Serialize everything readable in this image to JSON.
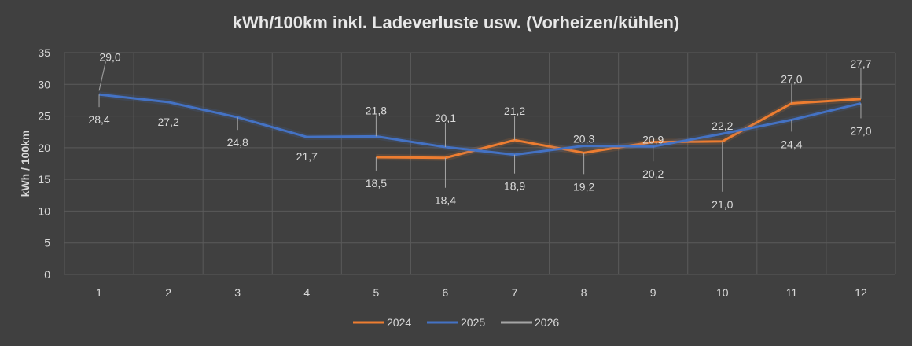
{
  "chart_data": {
    "type": "line",
    "title": "kWh/100km inkl. Ladeverluste usw. (Vorheizen/kühlen)",
    "xlabel": "",
    "ylabel": "kWh / 100km",
    "ylim": [
      0,
      35
    ],
    "yticks": [
      "0",
      "5",
      "10",
      "15",
      "20",
      "25",
      "30",
      "35"
    ],
    "categories": [
      "1",
      "2",
      "3",
      "4",
      "5",
      "6",
      "7",
      "8",
      "9",
      "10",
      "11",
      "12"
    ],
    "grid": true,
    "legend_position": "bottom",
    "series": [
      {
        "name": "2024",
        "color": "#ED7D31",
        "values": [
          null,
          null,
          null,
          null,
          18.5,
          18.4,
          21.2,
          19.2,
          20.9,
          21.0,
          27.0,
          27.7
        ],
        "labels": [
          null,
          null,
          null,
          null,
          "18,5",
          "18,4",
          "21,2",
          "19,2",
          "20,9",
          "21,0",
          "27,0",
          "27,7"
        ]
      },
      {
        "name": "2025",
        "color": "#4472C4",
        "values": [
          28.4,
          27.2,
          24.8,
          21.7,
          21.8,
          20.1,
          18.9,
          20.3,
          20.2,
          22.2,
          24.4,
          27.0
        ],
        "labels": [
          "28,4",
          "27,2",
          "24,8",
          "21,7",
          "21,8",
          "20,1",
          "18,9",
          "20,3",
          "20,2",
          "22,2",
          "24,4",
          "27,0"
        ]
      },
      {
        "name": "2026",
        "color": "#A5A5A5",
        "values": [
          29.0,
          null,
          null,
          null,
          null,
          null,
          null,
          null,
          null,
          null,
          null,
          null
        ],
        "labels": [
          "29,0",
          null,
          null,
          null,
          null,
          null,
          null,
          null,
          null,
          null,
          null,
          null
        ]
      }
    ]
  }
}
